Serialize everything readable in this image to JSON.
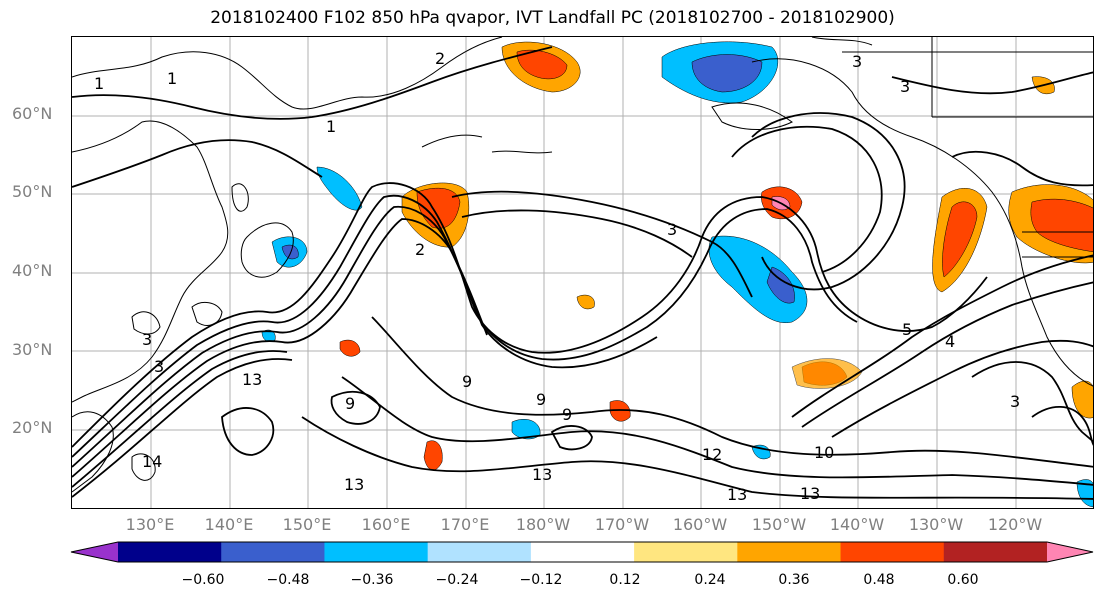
{
  "title": "2018102400 F102 850 hPa qvapor, IVT Landfall PC (2018102700 - 2018102900)",
  "lat_labels": [
    "60°N",
    "50°N",
    "40°N",
    "30°N",
    "20°N"
  ],
  "lon_labels": [
    "130°E",
    "140°E",
    "150°E",
    "160°E",
    "170°E",
    "180°W",
    "170°W",
    "160°W",
    "150°W",
    "140°W",
    "130°W",
    "120°W"
  ],
  "contour_labels": [
    "1",
    "1",
    "1",
    "2",
    "2",
    "3",
    "3",
    "3",
    "3",
    "3",
    "4",
    "5",
    "9",
    "9",
    "9",
    "9",
    "10",
    "12",
    "13",
    "13",
    "13",
    "13",
    "13",
    "14",
    "3"
  ],
  "colorbar": {
    "ticks": [
      "−0.60",
      "−0.48",
      "−0.36",
      "−0.24",
      "−0.12",
      "0.12",
      "0.24",
      "0.36",
      "0.48",
      "0.60"
    ],
    "colors": [
      "#9932cc",
      "#00008b",
      "#3a5fcd",
      "#00bfff",
      "#b0e2ff",
      "#ffffff",
      "#ffe680",
      "#ffa500",
      "#ff4500",
      "#b22222",
      "#ff85b3"
    ]
  }
}
